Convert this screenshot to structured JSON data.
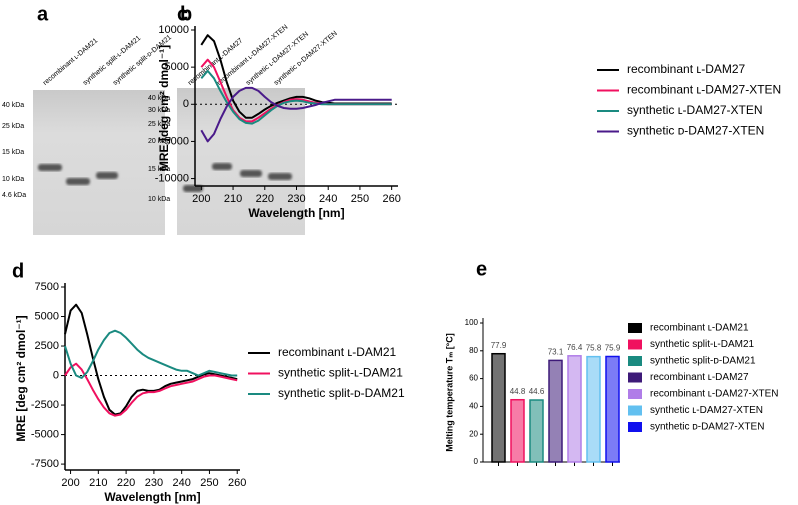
{
  "gel_a": {
    "label": "a",
    "lanes": [
      "recombinant ʟ-DAM21",
      "synthetic split-ʟ-DAM21",
      "synthetic split-ᴅ-DAM21"
    ],
    "markers": [
      "40 kDa",
      "25 kDa",
      "15 kDa",
      "10 kDa",
      "4.6 kDa"
    ]
  },
  "gel_b": {
    "label": "b",
    "lanes": [
      "recombinant ʟ-DAM27",
      "recombinant ʟ-DAM27-XTEN",
      "synthetic ʟ-DAM27-XTEN",
      "synthetic ᴅ-DAM27-XTEN"
    ],
    "markers": [
      "40 kDa",
      "30 kDa",
      "25 kDa",
      "20 kDa",
      "15 kDa",
      "10 kDa"
    ]
  },
  "chart_data": [
    {
      "type": "line",
      "label": "c",
      "xlabel": "Wavelength [nm]",
      "ylabel": "MRE  [deg cm² dmol⁻¹]",
      "x": [
        200,
        202,
        204,
        206,
        208,
        210,
        212,
        214,
        216,
        218,
        220,
        222,
        224,
        226,
        228,
        230,
        232,
        234,
        236,
        238,
        240,
        242,
        244,
        246,
        248,
        250,
        252,
        254,
        256,
        258,
        260
      ],
      "xlim": [
        198,
        262
      ],
      "xticks": [
        200,
        210,
        220,
        230,
        240,
        250,
        260
      ],
      "ylim": [
        -11000,
        10000
      ],
      "yticks": [
        -10000,
        -5000,
        0,
        5000,
        10000
      ],
      "series": [
        {
          "name": "recombinant ʟ-DAM27",
          "color": "#000000",
          "values": [
            8000,
            9300,
            8500,
            6000,
            3000,
            500,
            -1000,
            -1800,
            -1800,
            -1300,
            -700,
            -200,
            200,
            500,
            800,
            1000,
            1000,
            800,
            500,
            300,
            200,
            100,
            100,
            100,
            100,
            100,
            100,
            100,
            100,
            100,
            100
          ]
        },
        {
          "name": "recombinant ʟ-DAM27-XTEN",
          "color": "#f0105f",
          "values": [
            5000,
            6000,
            5000,
            3000,
            1000,
            -800,
            -1800,
            -2300,
            -2300,
            -1800,
            -1200,
            -600,
            -100,
            300,
            600,
            700,
            600,
            400,
            200,
            100,
            0,
            0,
            0,
            0,
            0,
            0,
            0,
            0,
            0,
            0,
            0
          ]
        },
        {
          "name": "synthetic ʟ-DAM27-XTEN",
          "color": "#1a8a80",
          "values": [
            3500,
            4500,
            3500,
            1800,
            300,
            -1000,
            -2000,
            -2500,
            -2600,
            -2200,
            -1500,
            -800,
            -200,
            200,
            400,
            500,
            400,
            200,
            100,
            0,
            0,
            0,
            0,
            0,
            0,
            0,
            0,
            0,
            0,
            0,
            0
          ]
        },
        {
          "name": "synthetic ᴅ-DAM27-XTEN",
          "color": "#4a1a8a",
          "values": [
            -3500,
            -5000,
            -4000,
            -2000,
            -300,
            1000,
            1800,
            2200,
            2200,
            1800,
            1000,
            300,
            -200,
            -500,
            -600,
            -600,
            -500,
            -300,
            -100,
            200,
            400,
            600,
            600,
            600,
            600,
            600,
            600,
            600,
            600,
            600,
            600
          ]
        }
      ]
    },
    {
      "type": "line",
      "label": "d",
      "xlabel": "Wavelength [nm]",
      "ylabel": "MRE  [deg cm² dmol⁻¹]",
      "x": [
        198,
        200,
        202,
        204,
        206,
        208,
        210,
        212,
        214,
        216,
        218,
        220,
        222,
        224,
        226,
        228,
        230,
        232,
        234,
        236,
        238,
        240,
        242,
        244,
        246,
        248,
        250,
        252,
        254,
        256,
        258,
        260
      ],
      "xlim": [
        198,
        261
      ],
      "xticks": [
        200,
        210,
        220,
        230,
        240,
        250,
        260
      ],
      "ylim": [
        -8000,
        7500
      ],
      "yticks": [
        -7500,
        -5000,
        -2500,
        0,
        2500,
        5000,
        7500
      ],
      "series": [
        {
          "name": "recombinant ʟ-DAM21",
          "color": "#000000",
          "values": [
            3500,
            5500,
            6000,
            5300,
            3500,
            1500,
            -300,
            -1800,
            -2900,
            -3300,
            -3200,
            -2600,
            -1800,
            -1300,
            -1200,
            -1300,
            -1300,
            -1200,
            -900,
            -700,
            -600,
            -500,
            -400,
            -300,
            -100,
            100,
            200,
            100,
            0,
            -100,
            -200,
            -300
          ]
        },
        {
          "name": "synthetic split-ʟ-DAM21",
          "color": "#f0105f",
          "values": [
            0,
            700,
            1000,
            500,
            -300,
            -1200,
            -2000,
            -2700,
            -3200,
            -3400,
            -3300,
            -2900,
            -2300,
            -1800,
            -1500,
            -1400,
            -1400,
            -1300,
            -1100,
            -900,
            -800,
            -700,
            -600,
            -500,
            -300,
            -100,
            0,
            0,
            -100,
            -200,
            -300,
            -400
          ]
        },
        {
          "name": "synthetic split-ᴅ-DAM21",
          "color": "#1a8a80",
          "values": [
            2500,
            1000,
            0,
            -200,
            300,
            1200,
            2200,
            3000,
            3600,
            3800,
            3600,
            3200,
            2700,
            2200,
            1800,
            1500,
            1300,
            1100,
            900,
            700,
            500,
            400,
            400,
            200,
            0,
            200,
            400,
            300,
            200,
            100,
            0,
            0
          ]
        }
      ]
    },
    {
      "type": "bar",
      "label": "e",
      "ylabel": "Melting temperature Tₘ [°C]",
      "categories": [
        "recombinant ʟ-DAM21",
        "synthetic split-ʟ-DAM21",
        "synthetic split-ᴅ-DAM21",
        "recombinant ʟ-DAM27",
        "recombinant ʟ-DAM27-XTEN",
        "synthetic ʟ-DAM27-XTEN",
        "synthetic ᴅ-DAM27-XTEN"
      ],
      "colors": [
        "#000000",
        "#f0105f",
        "#1a8a80",
        "#3d1a78",
        "#b07de8",
        "#62c0f0",
        "#1010ee"
      ],
      "values": [
        77.9,
        44.8,
        44.6,
        73.1,
        76.4,
        75.8,
        75.9
      ],
      "ylim": [
        0,
        100
      ],
      "yticks": [
        0,
        20,
        40,
        60,
        80,
        100
      ]
    }
  ]
}
